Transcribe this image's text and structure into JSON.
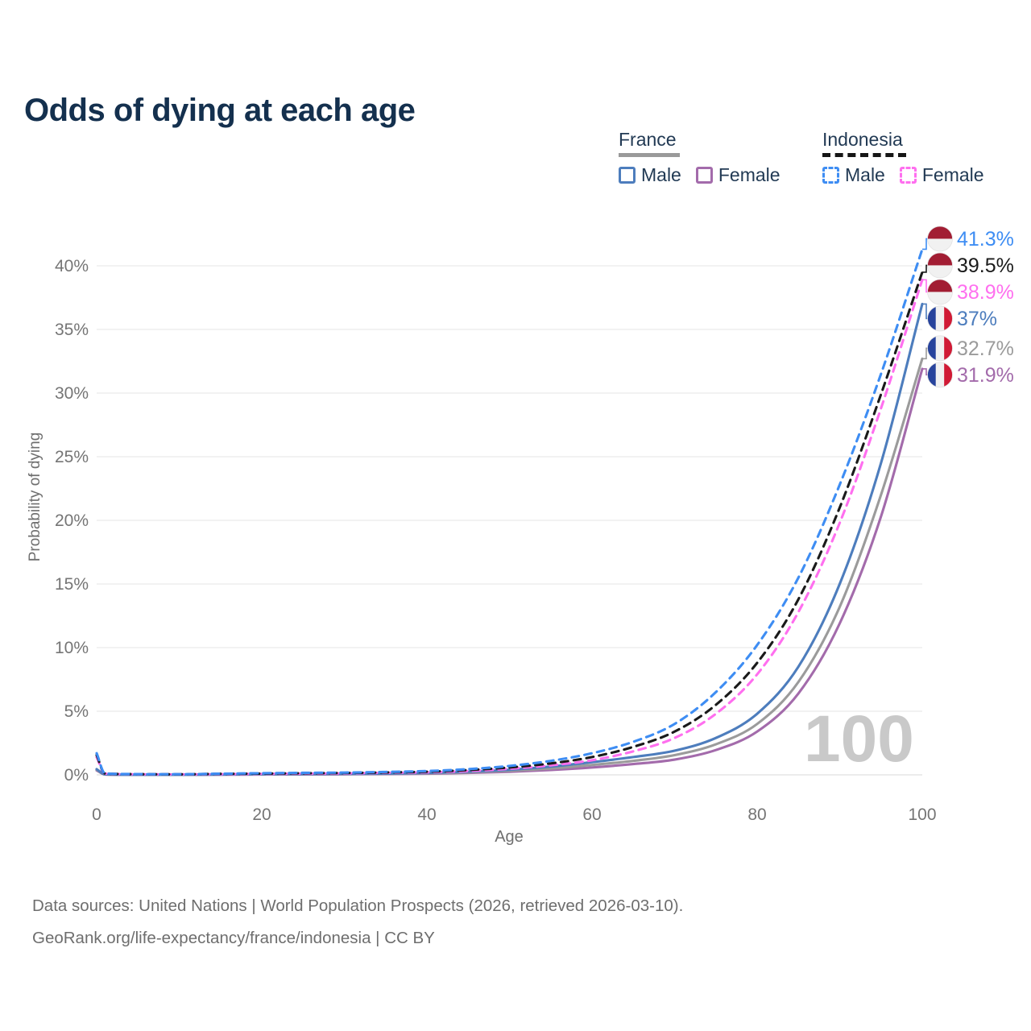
{
  "title": "Odds of dying at each age",
  "legend": {
    "groups": [
      {
        "id": "france",
        "label": "France",
        "line_style": "solid",
        "underline_color": "#9a9a9a",
        "items": [
          {
            "id": "france-male",
            "label": "Male",
            "color": "#4d7dbd",
            "style": "solid"
          },
          {
            "id": "france-female",
            "label": "Female",
            "color": "#a36bab",
            "style": "solid"
          }
        ]
      },
      {
        "id": "indonesia",
        "label": "Indonesia",
        "line_style": "dashed",
        "underline_color": "#161616",
        "items": [
          {
            "id": "indonesia-male",
            "label": "Male",
            "color": "#3e8df3",
            "style": "dashed"
          },
          {
            "id": "indonesia-female",
            "label": "Female",
            "color": "#ff6fef",
            "style": "dashed"
          }
        ]
      }
    ]
  },
  "chart_data": {
    "type": "line",
    "xlabel": "Age",
    "ylabel": "Probability of dying",
    "xlim": [
      0,
      100
    ],
    "ylim": [
      0,
      42.5
    ],
    "grid": true,
    "xticks": [
      0,
      20,
      40,
      60,
      80,
      100
    ],
    "yticks": [
      {
        "pct": 0,
        "label": "0%"
      },
      {
        "pct": 5,
        "label": "5%"
      },
      {
        "pct": 10,
        "label": "10%"
      },
      {
        "pct": 15,
        "label": "15%"
      },
      {
        "pct": 20,
        "label": "20%"
      },
      {
        "pct": 25,
        "label": "25%"
      },
      {
        "pct": 30,
        "label": "30%"
      },
      {
        "pct": 35,
        "label": "35%"
      },
      {
        "pct": 40,
        "label": "40%"
      }
    ],
    "age_indicator": "100",
    "ages": [
      0,
      1,
      5,
      10,
      15,
      20,
      25,
      30,
      35,
      40,
      45,
      50,
      55,
      60,
      65,
      70,
      75,
      80,
      85,
      90,
      95,
      100
    ],
    "series": [
      {
        "id": "france-female",
        "name": "France Female",
        "color": "#a36bab",
        "dash": "solid",
        "flag": "france",
        "end_label": "31.9%",
        "values": [
          0.35,
          0.03,
          0.008,
          0.008,
          0.02,
          0.025,
          0.035,
          0.045,
          0.06,
          0.09,
          0.15,
          0.24,
          0.38,
          0.58,
          0.85,
          1.2,
          1.95,
          3.4,
          6.4,
          11.9,
          20.3,
          31.9
        ]
      },
      {
        "id": "france-both",
        "name": "France",
        "color": "#9b9b9b",
        "dash": "solid",
        "flag": "france",
        "end_label": "32.7%",
        "values": [
          0.4,
          0.035,
          0.009,
          0.009,
          0.025,
          0.045,
          0.055,
          0.065,
          0.08,
          0.12,
          0.2,
          0.32,
          0.5,
          0.78,
          1.1,
          1.55,
          2.4,
          4.0,
          7.3,
          13.2,
          22.0,
          32.7
        ]
      },
      {
        "id": "france-male",
        "name": "France Male",
        "color": "#4d7dbd",
        "dash": "solid",
        "flag": "france",
        "end_label": "37%",
        "values": [
          0.45,
          0.04,
          0.01,
          0.01,
          0.03,
          0.06,
          0.07,
          0.08,
          0.1,
          0.15,
          0.25,
          0.4,
          0.65,
          1.0,
          1.4,
          1.9,
          2.9,
          4.8,
          8.5,
          15.0,
          24.5,
          37.0
        ]
      },
      {
        "id": "indonesia-female",
        "name": "Indonesia Female",
        "color": "#ff6fef",
        "dash": "dashed",
        "flag": "indonesia",
        "end_label": "38.9%",
        "values": [
          1.4,
          0.1,
          0.05,
          0.04,
          0.06,
          0.08,
          0.1,
          0.12,
          0.16,
          0.2,
          0.3,
          0.48,
          0.75,
          1.15,
          1.85,
          2.9,
          4.8,
          7.9,
          12.8,
          19.8,
          28.8,
          38.9
        ]
      },
      {
        "id": "indonesia-both",
        "name": "Indonesia",
        "color": "#1a1a1a",
        "dash": "dashed",
        "flag": "indonesia",
        "end_label": "39.5%",
        "values": [
          1.55,
          0.11,
          0.055,
          0.045,
          0.08,
          0.1,
          0.13,
          0.15,
          0.19,
          0.25,
          0.38,
          0.58,
          0.9,
          1.4,
          2.2,
          3.4,
          5.5,
          8.8,
          13.8,
          21.0,
          29.9,
          39.5
        ]
      },
      {
        "id": "indonesia-male",
        "name": "Indonesia Male",
        "color": "#3e8df3",
        "dash": "dashed",
        "flag": "indonesia",
        "end_label": "41.3%",
        "values": [
          1.7,
          0.12,
          0.06,
          0.05,
          0.09,
          0.13,
          0.16,
          0.18,
          0.23,
          0.3,
          0.45,
          0.7,
          1.1,
          1.7,
          2.6,
          4.0,
          6.5,
          10.2,
          15.5,
          22.8,
          31.5,
          41.3
        ]
      }
    ],
    "colors": {
      "grid": "#e4e4e4",
      "axis_text": "#757575",
      "watermark": "#c9c9c9",
      "flag_indonesia_red": "#a21d33",
      "flag_france_blue": "#27439c",
      "flag_france_red": "#d01a35",
      "flag_white": "#f1f1f1"
    }
  },
  "footer": {
    "line1": "Data sources: United Nations | World Population Prospects (2026, retrieved 2026-03-10).",
    "line2": "GeoRank.org/life-expectancy/france/indonesia | CC BY"
  }
}
